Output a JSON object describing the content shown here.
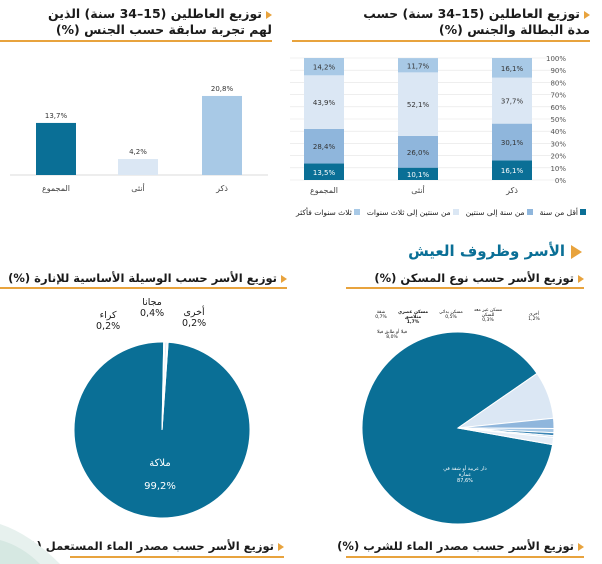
{
  "titles": {
    "right_top": "توزيع العاطلين (15–34 سنة) حسب\nمدة البطالة والجنس (%)",
    "left_top": "توزيع العاطلين (15–34 سنة) الذين\nلهم تجربة سابقة حسب الجنس (%)",
    "section": "الأسر وظروف العيش",
    "housing": "توزيع الأسر حسب نوع المسكن (%)",
    "lighting": "توزيع الأسر حسب الوسيلة الأساسية للإنارة (%)",
    "drinking_water": "توزيع الأسر حسب مصدر الماء للشرب (%)",
    "used_water": "توزيع الأسر حسب مصدر الماء المستعمل (%)"
  },
  "colors": {
    "dark": "#0a6f96",
    "mid": "#8fb6dc",
    "light": "#dbe7f4",
    "pale": "#a8c9e6",
    "accent": "#e8a33d"
  },
  "chart_data": [
    {
      "type": "bar",
      "stacked": true,
      "categories": [
        "ذكر",
        "أنثى",
        "المجموع"
      ],
      "series": [
        {
          "name": "أقل من سنة",
          "values": [
            16.1,
            10.1,
            13.5
          ],
          "labels": [
            "16,1%",
            "10,1%",
            "13,5%"
          ],
          "color": "#0a6f96"
        },
        {
          "name": "من سنة إلى سنتين",
          "values": [
            30.1,
            26.0,
            28.4
          ],
          "labels": [
            "30,1%",
            "26,0%",
            "28,4%"
          ],
          "color": "#8fb6dc"
        },
        {
          "name": "من سنتين إلى ثلاث سنوات",
          "values": [
            37.7,
            52.1,
            43.9
          ],
          "labels": [
            "37,7%",
            "52,1%",
            "43,9%"
          ],
          "color": "#dbe7f4"
        },
        {
          "name": "ثلاث سنوات فأكثر",
          "values": [
            16.1,
            11.7,
            14.2
          ],
          "labels": [
            "16,1%",
            "11,7%",
            "14,2%"
          ],
          "color": "#a8c9e6"
        }
      ],
      "yticks": [
        "0%",
        "10%",
        "20%",
        "30%",
        "40%",
        "50%",
        "60%",
        "70%",
        "80%",
        "90%",
        "100%"
      ],
      "ylim": [
        0,
        100
      ],
      "legend": "bottom"
    },
    {
      "type": "bar",
      "categories": [
        "ذكر",
        "أنثى",
        "المجموع"
      ],
      "values": [
        20.8,
        4.2,
        13.7
      ],
      "labels": [
        "20,8%",
        "4,2%",
        "13,7%"
      ],
      "colors": [
        "#a8c9e6",
        "#dbe7f4",
        "#0a6f96"
      ],
      "ylim": [
        0,
        25
      ]
    },
    {
      "type": "pie",
      "title": "توزيع الأسر حسب الوسيلة الأساسية للإنارة (%)",
      "slices": [
        {
          "name": "ملاكة",
          "value": 99.2,
          "label": "99,2%",
          "color": "#0a6f96"
        },
        {
          "name": "أخرى",
          "value": 0.2,
          "label": "0,2%",
          "color": "#a8c9e6"
        },
        {
          "name": "مجانا",
          "value": 0.4,
          "label": "0,4%",
          "color": "#dbe7f4"
        },
        {
          "name": "كراء",
          "value": 0.2,
          "label": "0,2%",
          "color": "#8fb6dc"
        }
      ]
    },
    {
      "type": "pie",
      "title": "توزيع الأسر حسب نوع المسكن (%)",
      "slices": [
        {
          "name": "دار عربية أو شقة في عمارة",
          "value": 87.6,
          "label": "87,6%",
          "color": "#0a6f96"
        },
        {
          "name": "فيلا أو طابق فيلا",
          "value": 8.0,
          "label": "8,0%",
          "color": "#dbe7f4"
        },
        {
          "name": "مسكن عصري متلاصق",
          "value": 1.7,
          "label": "1,7%",
          "color": "#8fb6dc"
        },
        {
          "name": "شقة",
          "value": 0.7,
          "label": "0,7%",
          "color": "#a8c9e6"
        },
        {
          "name": "مسكن بدائي",
          "value": 0.5,
          "label": "0,5%",
          "color": "#3d86b5"
        },
        {
          "name": "مسكن غير معد للسكن",
          "value": 0.3,
          "label": "0,3%",
          "color": "#c0d6ec"
        },
        {
          "name": "أخرى",
          "value": 1.2,
          "label": "1,2%",
          "color": "#e6eef7"
        }
      ]
    }
  ]
}
